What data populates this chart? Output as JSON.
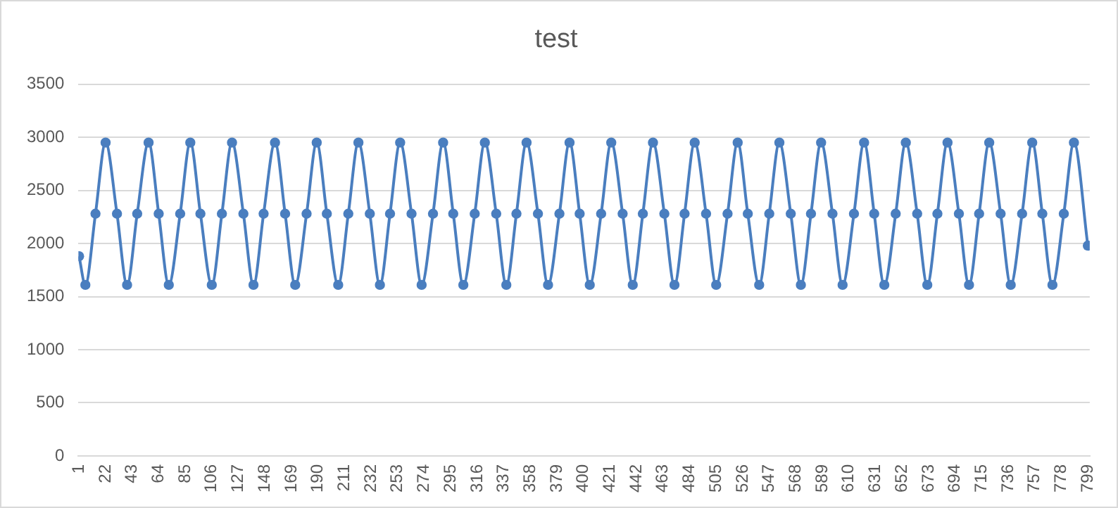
{
  "chart_data": {
    "type": "line",
    "title": "test",
    "x": [
      1,
      6,
      14,
      22,
      31,
      39,
      47,
      56,
      64,
      72,
      81,
      89,
      97,
      106,
      114,
      122,
      131,
      139,
      147,
      156,
      164,
      172,
      181,
      189,
      197,
      206,
      214,
      222,
      231,
      239,
      247,
      255,
      264,
      272,
      281,
      289,
      297,
      305,
      314,
      322,
      331,
      339,
      347,
      355,
      364,
      372,
      381,
      389,
      397,
      405,
      414,
      422,
      431,
      439,
      447,
      455,
      464,
      472,
      480,
      488,
      497,
      505,
      514,
      522,
      530,
      539,
      547,
      555,
      564,
      572,
      580,
      588,
      597,
      605,
      614,
      622,
      630,
      638,
      647,
      655,
      664,
      672,
      680,
      688,
      697,
      705,
      713,
      721,
      730,
      738,
      747,
      755,
      763,
      771,
      780,
      788,
      799
    ],
    "series": [
      {
        "color": "#4a7ebf",
        "values": [
          1880,
          1610,
          2280,
          2950,
          2280,
          1610,
          2280,
          2950,
          2280,
          1610,
          2280,
          2950,
          2280,
          1610,
          2280,
          2950,
          2280,
          1610,
          2280,
          2950,
          2280,
          1610,
          2280,
          2950,
          2280,
          1610,
          2280,
          2950,
          2280,
          1610,
          2280,
          2950,
          2280,
          1610,
          2280,
          2950,
          2280,
          1610,
          2280,
          2950,
          2280,
          1610,
          2280,
          2950,
          2280,
          1610,
          2280,
          2950,
          2280,
          1610,
          2280,
          2950,
          2280,
          1610,
          2280,
          2950,
          2280,
          1610,
          2280,
          2950,
          2280,
          1610,
          2280,
          2950,
          2280,
          1610,
          2280,
          2950,
          2280,
          1610,
          2280,
          2950,
          2280,
          1610,
          2280,
          2950,
          2280,
          1610,
          2280,
          2950,
          2280,
          1610,
          2280,
          2950,
          2280,
          1610,
          2280,
          2950,
          2280,
          1610,
          2280,
          2950,
          2280,
          1610,
          2280,
          2950,
          1980
        ]
      }
    ],
    "xlim": [
      0.5,
      800.5
    ],
    "xticks": [
      1,
      22,
      43,
      64,
      85,
      106,
      127,
      148,
      169,
      190,
      211,
      232,
      253,
      274,
      295,
      316,
      337,
      358,
      379,
      400,
      421,
      442,
      463,
      484,
      505,
      526,
      547,
      568,
      589,
      610,
      631,
      652,
      673,
      694,
      715,
      736,
      757,
      778,
      799
    ],
    "ylim": [
      0,
      3500
    ],
    "yticks": [
      0,
      500,
      1000,
      1500,
      2000,
      2500,
      3000,
      3500
    ],
    "grid": "y",
    "legend": false,
    "marker": "circle",
    "line_style": "solid"
  }
}
